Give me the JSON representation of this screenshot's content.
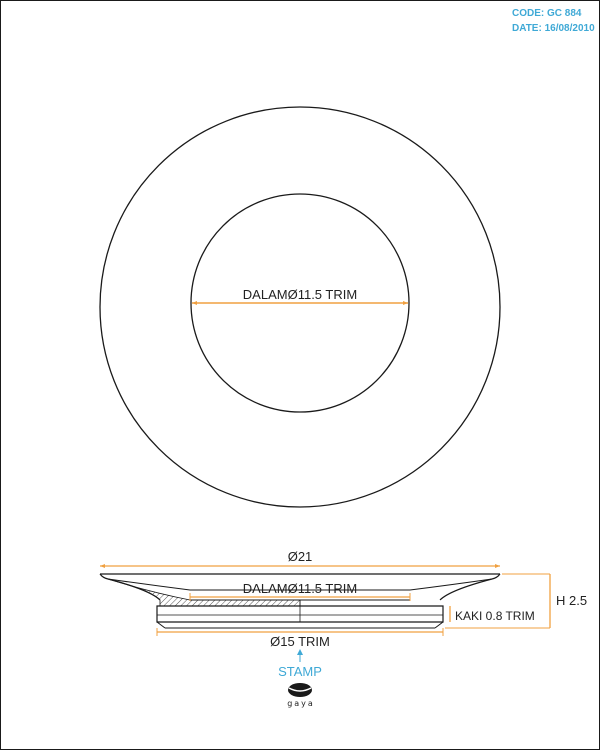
{
  "header": {
    "code": "CODE: GC 884",
    "date": "DATE: 16/08/2010"
  },
  "top_view": {
    "inner_label": "DALAMØ11.5 TRIM"
  },
  "side_view": {
    "outer_diameter_label": "Ø21",
    "inner_label": "DALAMØ11.5 TRIM",
    "foot_diameter_label": "Ø15 TRIM",
    "height_label": "H 2.5",
    "foot_height_label": "KAKI 0.8 TRIM"
  },
  "stamp": {
    "label": "STAMP",
    "logo_text": "gaya"
  },
  "colors": {
    "dimension": "#f0a040",
    "accent": "#3fa9d6",
    "ink": "#1a1a1a"
  }
}
